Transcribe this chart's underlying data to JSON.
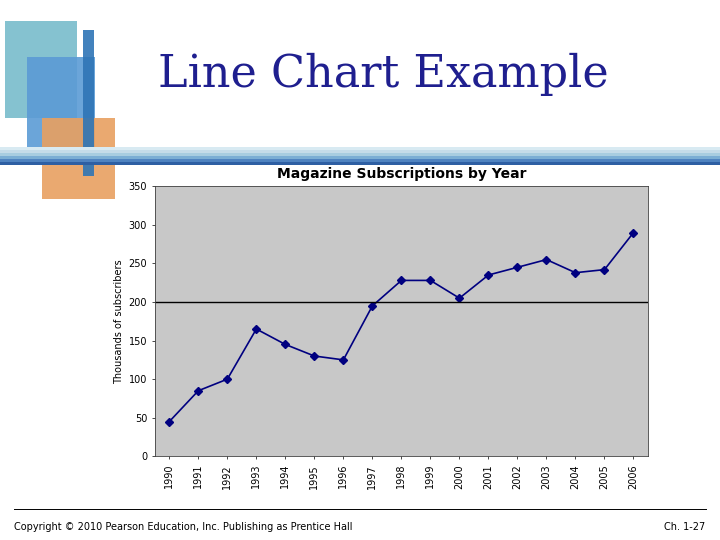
{
  "title": "Magazine Subscriptions by Year",
  "ylabel": "Thousands of subscribers",
  "years": [
    1990,
    1991,
    1992,
    1993,
    1994,
    1995,
    1996,
    1997,
    1998,
    1999,
    2000,
    2001,
    2002,
    2003,
    2004,
    2005,
    2006
  ],
  "values": [
    45,
    85,
    100,
    165,
    145,
    130,
    125,
    195,
    228,
    228,
    205,
    235,
    245,
    255,
    238,
    242,
    290
  ],
  "ylim": [
    0,
    350
  ],
  "yticks": [
    0,
    50,
    100,
    150,
    200,
    250,
    300,
    350
  ],
  "hline_y": 200,
  "line_color": "#000080",
  "marker": "D",
  "marker_size": 4,
  "plot_bg_color": "#c8c8c8",
  "fig_bg_color": "#ffffff",
  "chart_title_fontsize": 10,
  "axis_label_fontsize": 7,
  "tick_fontsize": 7,
  "slide_title": "Line Chart Example",
  "slide_title_color": "#1F1F8F",
  "footer_left": "Copyright © 2010 Pearson Education, Inc. Publishing as Prentice Hall",
  "footer_right": "Ch. 1-27",
  "slide_title_fontsize": 32,
  "footer_fontsize": 7,
  "icon_blue1": "#5B9BD5",
  "icon_blue2": "#70B8C8",
  "icon_orange": "#E8A060",
  "icon_blue_dark": "#2E75B6",
  "divider_color1": "#4472C4",
  "divider_color2": "#9DC3E6"
}
